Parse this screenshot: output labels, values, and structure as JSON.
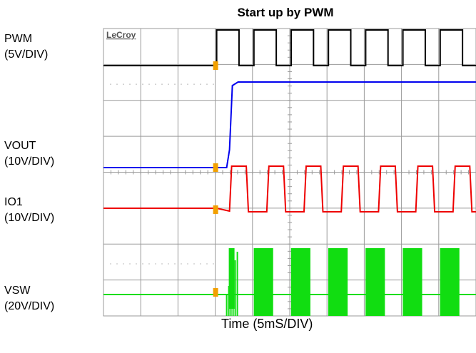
{
  "chart_data": {
    "type": "line",
    "title": "Start up by PWM",
    "xlabel": "Time (5mS/DIV)",
    "grid": true,
    "brand": "LeCroy",
    "x_divisions": 10,
    "y_divisions": 8,
    "channels": [
      {
        "name": "PWM",
        "scale": "(5V/DIV)",
        "color": "#000000"
      },
      {
        "name": "VOUT",
        "scale": "(10V/DIV)",
        "color": "#0000ee"
      },
      {
        "name": "IO1",
        "scale": "(10V/DIV)",
        "color": "#ee0000"
      },
      {
        "name": "VSW",
        "scale": "(20V/DIV)",
        "color": "#11dd11"
      }
    ],
    "trigger_marker_color": "#f2a000"
  }
}
